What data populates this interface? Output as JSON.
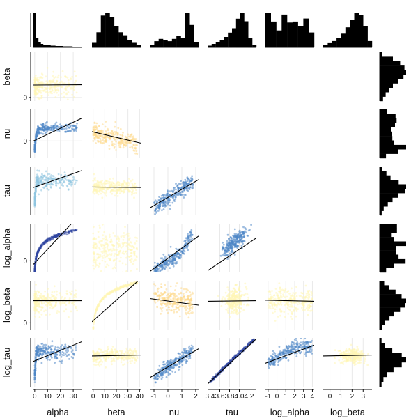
{
  "chart_data": {
    "type": "scatter",
    "variables": [
      "alpha",
      "beta",
      "nu",
      "tau",
      "log_alpha",
      "log_beta",
      "log_tau"
    ],
    "column_labels": [
      "alpha",
      "beta",
      "nu",
      "tau",
      "log_alpha",
      "log_beta"
    ],
    "row_labels": [
      "beta",
      "nu",
      "tau",
      "log_alpha",
      "log_beta",
      "log_tau"
    ],
    "column_ticks": [
      {
        "variable": "alpha",
        "labels": [
          "0",
          "10",
          "20",
          "30"
        ],
        "values": [
          0,
          10,
          20,
          30
        ],
        "range": [
          -1,
          37
        ]
      },
      {
        "variable": "beta",
        "labels": [
          "0",
          "10",
          "20",
          "30",
          "40"
        ],
        "values": [
          0,
          10,
          20,
          30,
          40
        ],
        "range": [
          -1,
          41
        ]
      },
      {
        "variable": "nu",
        "labels": [
          "-1",
          "0",
          "1",
          "2"
        ],
        "values": [
          -1,
          0,
          1,
          2
        ],
        "range": [
          -1.3,
          2.2
        ]
      },
      {
        "variable": "tau",
        "labels": [
          "3.4",
          "3.6",
          "3.8",
          "4.0",
          "4.2"
        ],
        "values": [
          3.4,
          3.6,
          3.8,
          4.0,
          4.2
        ],
        "range": [
          3.35,
          4.35
        ]
      },
      {
        "variable": "log_alpha",
        "labels": [
          "-1",
          "0",
          "1",
          "2",
          "3",
          "4"
        ],
        "values": [
          -1,
          0,
          1,
          2,
          3,
          4
        ],
        "range": [
          -1.3,
          4.2
        ]
      },
      {
        "variable": "log_beta",
        "labels": [
          "0",
          "1",
          "2",
          "3"
        ],
        "values": [
          0,
          1,
          2,
          3
        ],
        "range": [
          -0.6,
          3.8
        ]
      }
    ],
    "row_ticks": [
      {
        "variable": "beta",
        "labels": [
          "0"
        ],
        "values": [
          0
        ],
        "range": [
          -3,
          38
        ]
      },
      {
        "variable": "nu",
        "labels": [
          "0"
        ],
        "values": [
          0
        ],
        "range": [
          -1.2,
          2.2
        ]
      },
      {
        "variable": "tau",
        "labels": [],
        "values": [],
        "range": [
          3.35,
          4.35
        ]
      },
      {
        "variable": "log_alpha",
        "labels": [
          "0"
        ],
        "values": [
          0
        ],
        "range": [
          -1.3,
          4.2
        ]
      },
      {
        "variable": "log_beta",
        "labels": [
          "0"
        ],
        "values": [
          0
        ],
        "range": [
          -0.6,
          3.8
        ]
      },
      {
        "variable": "log_tau",
        "labels": [],
        "values": [],
        "range": [
          1.2,
          1.47
        ]
      }
    ],
    "fit_lines": [
      {
        "row": "beta",
        "column": "alpha",
        "y_at_xmin": 10.5,
        "y_at_xmax": 10.7
      },
      {
        "row": "nu",
        "column": "alpha",
        "y_at_xmin": 0.0,
        "y_at_xmax": 1.6
      },
      {
        "row": "nu",
        "column": "beta",
        "y_at_xmin": 0.65,
        "y_at_xmax": -0.15
      },
      {
        "row": "tau",
        "column": "alpha",
        "y_at_xmin": 3.92,
        "y_at_xmax": 4.27
      },
      {
        "row": "tau",
        "column": "beta",
        "y_at_xmin": 3.93,
        "y_at_xmax": 3.92
      },
      {
        "row": "tau",
        "column": "nu",
        "y_at_xmin": 3.5,
        "y_at_xmax": 4.08
      },
      {
        "row": "log_alpha",
        "column": "alpha",
        "y_at_xmin": -0.4,
        "y_at_xmax": 5.5
      },
      {
        "row": "log_alpha",
        "column": "beta",
        "y_at_xmin": 1.1,
        "y_at_xmax": 1.1
      },
      {
        "row": "log_alpha",
        "column": "nu",
        "y_at_xmin": -1.2,
        "y_at_xmax": 2.8
      },
      {
        "row": "log_alpha",
        "column": "tau",
        "y_at_xmin": -1.1,
        "y_at_xmax": 2.6
      },
      {
        "row": "log_beta",
        "column": "alpha",
        "y_at_xmin": 2.0,
        "y_at_xmax": 2.0
      },
      {
        "row": "log_beta",
        "column": "beta",
        "y_at_xmin": 0.1,
        "y_at_xmax": 4.0
      },
      {
        "row": "log_beta",
        "column": "nu",
        "y_at_xmin": 2.2,
        "y_at_xmax": 1.6
      },
      {
        "row": "log_beta",
        "column": "tau",
        "y_at_xmin": 1.95,
        "y_at_xmax": 2.0
      },
      {
        "row": "log_beta",
        "column": "log_alpha",
        "y_at_xmin": 2.05,
        "y_at_xmax": 1.95
      },
      {
        "row": "log_tau",
        "column": "alpha",
        "y_at_xmin": 1.34,
        "y_at_xmax": 1.45
      },
      {
        "row": "log_tau",
        "column": "beta",
        "y_at_xmin": 1.37,
        "y_at_xmax": 1.375
      },
      {
        "row": "log_tau",
        "column": "nu",
        "y_at_xmin": 1.25,
        "y_at_xmax": 1.41
      },
      {
        "row": "log_tau",
        "column": "tau",
        "y_at_xmin": 1.215,
        "y_at_xmax": 1.465
      },
      {
        "row": "log_tau",
        "column": "log_alpha",
        "y_at_xmin": 1.33,
        "y_at_xmax": 1.43
      },
      {
        "row": "log_tau",
        "column": "log_beta",
        "y_at_xmin": 1.37,
        "y_at_xmax": 1.375
      }
    ],
    "top_histograms": [
      {
        "variable": "alpha",
        "counts": [
          100,
          28,
          14,
          10,
          8,
          7,
          6,
          5,
          5,
          4,
          4,
          4,
          3,
          3,
          3,
          3,
          2,
          2,
          2,
          2
        ]
      },
      {
        "variable": "beta",
        "counts": [
          6,
          20,
          42,
          46,
          40,
          28,
          20,
          16,
          10,
          6,
          3
        ]
      },
      {
        "variable": "nu",
        "counts": [
          6,
          16,
          22,
          18,
          16,
          22,
          30,
          24,
          90,
          58,
          14
        ]
      },
      {
        "variable": "tau",
        "counts": [
          4,
          8,
          12,
          16,
          24,
          34,
          44,
          66,
          80,
          60,
          22,
          6
        ]
      },
      {
        "variable": "log_alpha",
        "counts": [
          70,
          52,
          34,
          66,
          50,
          52,
          42,
          58,
          30
        ]
      },
      {
        "variable": "log_beta",
        "counts": [
          4,
          8,
          12,
          18,
          26,
          38,
          52,
          66,
          62,
          40,
          12
        ]
      }
    ],
    "right_histograms": [
      {
        "variable": "beta",
        "counts": [
          8,
          40,
          62,
          75,
          80,
          72,
          56,
          40,
          28,
          18,
          10
        ]
      },
      {
        "variable": "nu",
        "counts": [
          28,
          60,
          64,
          58,
          42,
          46,
          48,
          54,
          100,
          70,
          24
        ]
      },
      {
        "variable": "tau",
        "counts": [
          8,
          20,
          32,
          56,
          78,
          74,
          54,
          38,
          24,
          12,
          6
        ]
      },
      {
        "variable": "log_alpha",
        "counts": [
          64,
          64,
          42,
          52,
          98,
          62,
          62,
          70,
          96,
          52,
          24
        ]
      },
      {
        "variable": "log_beta",
        "counts": [
          12,
          24,
          42,
          58,
          70,
          68,
          54,
          38,
          26,
          14,
          6
        ]
      },
      {
        "variable": "log_tau",
        "counts": [
          6,
          16,
          40,
          70,
          84,
          70,
          44,
          24,
          12,
          6
        ]
      }
    ],
    "point_colors": {
      "pale_yellow": "#fff5b5",
      "light_orange": "#fdd98a",
      "light_blue": "#8ec4e0",
      "mid_blue": "#4f87c6",
      "dark_blue": "#2f46a0"
    }
  }
}
